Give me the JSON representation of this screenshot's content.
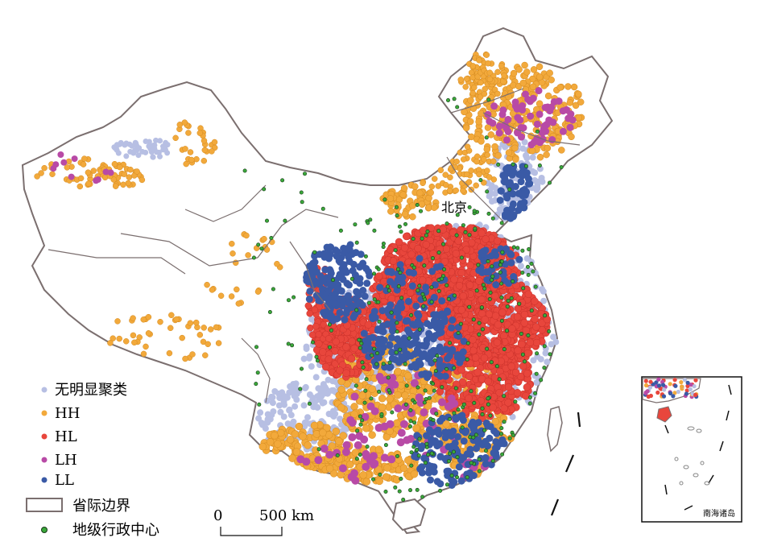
{
  "map": {
    "capital_label": "北京",
    "colors": {
      "no_cluster": "#b7bfe3",
      "hh": "#f2a93b",
      "hl": "#e8463c",
      "lh": "#b84aa6",
      "ll": "#3a5aa6",
      "boundary": "#7b6f6f",
      "admin_center": "#3aa83a"
    }
  },
  "legend": {
    "items": [
      {
        "key": "no_cluster",
        "label": "无明显聚类"
      },
      {
        "key": "hh",
        "label": "HH"
      },
      {
        "key": "hl",
        "label": "HL"
      },
      {
        "key": "lh",
        "label": "LH"
      },
      {
        "key": "ll",
        "label": "LL"
      }
    ],
    "boundary_label": "省际边界",
    "admin_center_label": "地级行政中心"
  },
  "scale_bar": {
    "start_label": "0",
    "end_label": "500 km"
  },
  "inset": {
    "label": "南海诸岛"
  }
}
